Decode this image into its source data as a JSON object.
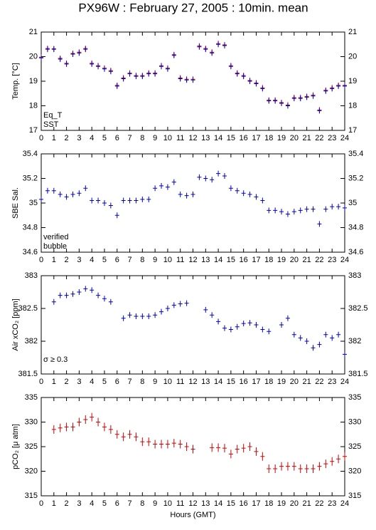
{
  "chart_data": [
    {
      "type": "scatter",
      "title": "PX96W : February 27, 2005 : 10min. mean",
      "ylabel": "Temp. [°C]",
      "xlim": [
        0,
        24
      ],
      "xticks": [
        0,
        1,
        2,
        3,
        4,
        5,
        6,
        7,
        8,
        9,
        10,
        11,
        12,
        13,
        14,
        15,
        16,
        17,
        18,
        19,
        20,
        21,
        22,
        23,
        24
      ],
      "ylim": [
        17,
        21
      ],
      "yticks": [
        17,
        18,
        19,
        20,
        21
      ],
      "x": [
        0,
        0.5,
        1,
        1.5,
        2,
        2.5,
        3,
        3.5,
        4,
        4.5,
        5,
        5.5,
        6,
        6.5,
        7,
        7.5,
        8,
        8.5,
        9,
        9.5,
        10,
        10.5,
        11,
        11.5,
        12,
        12.5,
        13,
        13.5,
        14,
        14.5,
        15,
        15.5,
        16,
        16.5,
        17,
        17.5,
        18,
        18.5,
        19,
        19.5,
        20,
        20.5,
        21,
        21.5,
        22,
        22.5,
        23,
        23.5,
        24
      ],
      "series": [
        {
          "name": "Eq_T",
          "color": "#d00000",
          "values": [
            19.98,
            20.33,
            20.32,
            19.93,
            19.73,
            20.13,
            20.18,
            20.33,
            19.73,
            19.63,
            19.53,
            19.43,
            18.83,
            19.13,
            19.33,
            19.23,
            19.23,
            19.33,
            19.33,
            19.63,
            19.53,
            20.08,
            19.13,
            19.08,
            19.08,
            20.43,
            20.33,
            20.18,
            20.53,
            20.48,
            19.63,
            19.33,
            19.23,
            19.03,
            18.93,
            18.73,
            18.23,
            18.23,
            18.13,
            18.03,
            18.33,
            18.33,
            18.38,
            18.43,
            17.83,
            18.63,
            18.73,
            18.83,
            18.83
          ]
        },
        {
          "name": "SST",
          "color": "#0000c0",
          "values": [
            19.95,
            20.3,
            20.3,
            19.9,
            19.7,
            20.1,
            20.15,
            20.3,
            19.7,
            19.6,
            19.5,
            19.4,
            18.8,
            19.1,
            19.3,
            19.2,
            19.2,
            19.3,
            19.3,
            19.6,
            19.5,
            20.05,
            19.1,
            19.05,
            19.05,
            20.4,
            20.3,
            20.15,
            20.5,
            20.45,
            19.6,
            19.3,
            19.2,
            19.0,
            18.9,
            18.7,
            18.2,
            18.2,
            18.1,
            18.0,
            18.3,
            18.3,
            18.35,
            18.4,
            17.8,
            18.6,
            18.7,
            18.8,
            18.8
          ]
        }
      ]
    },
    {
      "type": "scatter",
      "ylabel": "SBE Sal.",
      "annotation": "bubble",
      "annotation_color": "#c000c0",
      "xlim": [
        0,
        24
      ],
      "xticks": [
        0,
        1,
        2,
        3,
        4,
        5,
        6,
        7,
        8,
        9,
        10,
        11,
        12,
        13,
        14,
        15,
        16,
        17,
        18,
        19,
        20,
        21,
        22,
        23,
        24
      ],
      "ylim": [
        34.6,
        35.4
      ],
      "yticks": [
        34.6,
        34.8,
        35,
        35.2,
        35.4
      ],
      "x": [
        0,
        0.5,
        1,
        1.5,
        2,
        2.5,
        3,
        3.5,
        4,
        4.5,
        5,
        5.5,
        6,
        6.5,
        7,
        7.5,
        8,
        8.5,
        9,
        9.5,
        10,
        10.5,
        11,
        11.5,
        12,
        12.5,
        13,
        13.5,
        14,
        14.5,
        15,
        15.5,
        16,
        16.5,
        17,
        17.5,
        18,
        18.5,
        19,
        19.5,
        20,
        20.5,
        21,
        21.5,
        22,
        22.5,
        23,
        23.5,
        24
      ],
      "series": [
        {
          "name": "verified",
          "color": "#0000c0",
          "values": [
            35.03,
            35.1,
            35.1,
            35.07,
            35.05,
            35.07,
            35.08,
            35.12,
            35.02,
            35.02,
            35.0,
            34.98,
            34.9,
            35.02,
            35.02,
            35.02,
            35.03,
            35.03,
            35.12,
            35.14,
            35.13,
            35.17,
            35.07,
            35.06,
            35.07,
            35.21,
            35.2,
            35.19,
            35.24,
            35.22,
            35.12,
            35.1,
            35.08,
            35.07,
            35.05,
            35.02,
            34.94,
            34.94,
            34.93,
            34.91,
            34.93,
            34.94,
            34.95,
            34.95,
            34.83,
            34.95,
            34.97,
            34.97,
            34.96
          ]
        }
      ]
    },
    {
      "type": "scatter",
      "ylabel": "Air xCO₂ [ppm]",
      "annotation": "σ ≥ 0.3",
      "annotation_color": "#c000c0",
      "xlim": [
        0,
        24
      ],
      "xticks": [
        0,
        1,
        2,
        3,
        4,
        5,
        6,
        7,
        8,
        9,
        10,
        11,
        12,
        13,
        14,
        15,
        16,
        17,
        18,
        19,
        20,
        21,
        22,
        23,
        24
      ],
      "ylim": [
        381.5,
        383
      ],
      "yticks": [
        381.5,
        382,
        382.5,
        383
      ],
      "x": [
        0,
        0.5,
        1,
        1.5,
        2,
        2.5,
        3,
        3.5,
        4,
        4.5,
        5,
        5.5,
        6,
        6.5,
        7,
        7.5,
        8,
        8.5,
        9,
        9.5,
        10,
        10.5,
        11,
        11.5,
        12,
        12.5,
        13,
        13.5,
        14,
        14.5,
        15,
        15.5,
        16,
        16.5,
        17,
        17.5,
        18,
        18.5,
        19,
        19.5,
        20,
        20.5,
        21,
        21.5,
        22,
        22.5,
        23,
        23.5,
        24
      ],
      "series": [
        {
          "name": "Air xCO2",
          "color": "#0000c0",
          "values": [
            null,
            null,
            382.6,
            382.7,
            382.7,
            382.72,
            382.75,
            382.8,
            382.78,
            382.7,
            382.65,
            382.6,
            null,
            382.35,
            382.4,
            382.38,
            382.38,
            382.38,
            382.4,
            382.45,
            382.5,
            382.55,
            382.57,
            382.58,
            null,
            null,
            382.48,
            382.4,
            382.3,
            382.2,
            382.18,
            382.22,
            382.27,
            382.28,
            382.25,
            382.18,
            382.15,
            null,
            382.25,
            382.35,
            382.1,
            382.05,
            382.0,
            381.9,
            381.95,
            382.1,
            382.05,
            382.1,
            381.8
          ]
        }
      ]
    },
    {
      "type": "scatter",
      "ylabel": "pCO₂ [μ atm]",
      "xlabel": "Hours (GMT)",
      "xlim": [
        0,
        24
      ],
      "xticks": [
        0,
        1,
        2,
        3,
        4,
        5,
        6,
        7,
        8,
        9,
        10,
        11,
        12,
        13,
        14,
        15,
        16,
        17,
        18,
        19,
        20,
        21,
        22,
        23,
        24
      ],
      "ylim": [
        315,
        335
      ],
      "yticks": [
        315,
        320,
        325,
        330,
        335
      ],
      "x": [
        0,
        0.5,
        1,
        1.5,
        2,
        2.5,
        3,
        3.5,
        4,
        4.5,
        5,
        5.5,
        6,
        6.5,
        7,
        7.5,
        8,
        8.5,
        9,
        9.5,
        10,
        10.5,
        11,
        11.5,
        12,
        12.5,
        13,
        13.5,
        14,
        14.5,
        15,
        15.5,
        16,
        16.5,
        17,
        17.5,
        18,
        18.5,
        19,
        19.5,
        20,
        20.5,
        21,
        21.5,
        22,
        22.5,
        23,
        23.5,
        24
      ],
      "series": [
        {
          "name": "pCO2",
          "color": "#d00000",
          "values": [
            null,
            null,
            328.5,
            328.8,
            329,
            329,
            330,
            330.5,
            331,
            330,
            329,
            328.5,
            327.5,
            327,
            327.5,
            327,
            326,
            326,
            325.5,
            325.5,
            325.5,
            325.7,
            325.5,
            325,
            324.5,
            null,
            null,
            324.8,
            324.8,
            324.7,
            323.5,
            324.5,
            324.7,
            325,
            324,
            323,
            320.5,
            320.5,
            321,
            321,
            321,
            320.5,
            320.5,
            320.5,
            321,
            321.5,
            322,
            322.5,
            323
          ]
        }
      ]
    }
  ]
}
